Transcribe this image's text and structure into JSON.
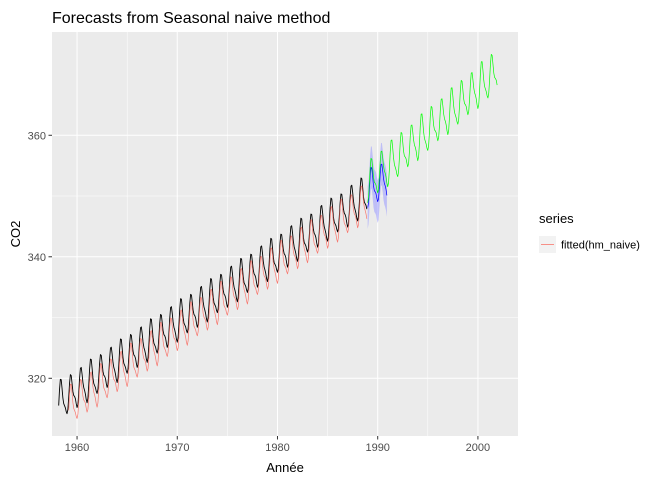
{
  "chart_data": {
    "type": "line",
    "title": "Forecasts from Seasonal naive method",
    "xlabel": "Année",
    "ylabel": "CO2",
    "xlim": [
      1957.5,
      2004
    ],
    "ylim": [
      310.5,
      377
    ],
    "x_ticks": [
      1960,
      1970,
      1980,
      1990,
      2000
    ],
    "y_ticks": [
      320,
      340,
      360
    ],
    "x_tick_labels": [
      "1960",
      "1970",
      "1980",
      "1990",
      "2000"
    ],
    "y_tick_labels": [
      "320",
      "340",
      "360"
    ],
    "grid": true,
    "legend": {
      "title": "series",
      "position": "right",
      "entries": [
        {
          "label": "fitted(hm_naive)",
          "color": "#F8766D"
        }
      ]
    },
    "series": [
      {
        "name": "observed",
        "role": "history",
        "color": "#000000",
        "start": 1958.167,
        "end": 1988.917,
        "frequency": 12,
        "level_start": 316.0,
        "level_end": 350.0,
        "seasonal_amplitude": 2.8
      },
      {
        "name": "fitted(hm_naive)",
        "role": "fitted",
        "color": "#F8766D",
        "start": 1959.167,
        "end": 1988.917,
        "frequency": 12,
        "level_start": 315.2,
        "level_end": 348.8,
        "seasonal_amplitude": 2.8
      },
      {
        "name": "forecast",
        "role": "forecast",
        "color": "#0000FF",
        "start": 1989.0,
        "end": 1990.917,
        "frequency": 12,
        "level_start": 351.0,
        "level_end": 352.5,
        "seasonal_amplitude": 2.8,
        "interval_color": "#9999FF",
        "interval_halfwidth": 3.5
      },
      {
        "name": "test",
        "role": "test",
        "color": "#00FF00",
        "start": 1989.0,
        "end": 2001.917,
        "frequency": 12,
        "level_start": 352.0,
        "level_end": 370.5,
        "seasonal_amplitude": 3.0
      }
    ]
  },
  "colors": {
    "panel_background": "#EBEBEB",
    "grid_major": "#FFFFFF",
    "history": "#000000",
    "fitted": "#F8766D",
    "forecast": "#0000FF",
    "interval": "#9999FF",
    "test": "#00FF00"
  }
}
